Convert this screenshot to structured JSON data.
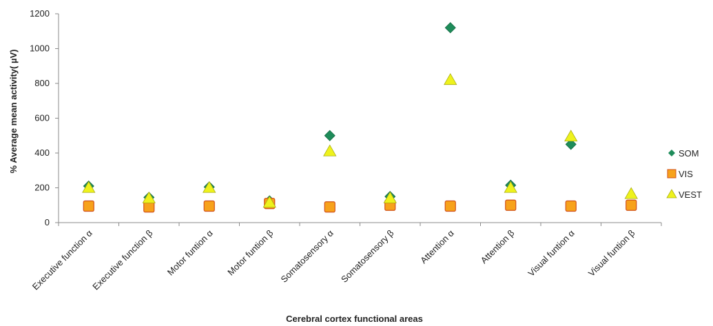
{
  "chart_data": {
    "type": "scatter",
    "title": "",
    "xlabel": "Cerebral cortex functional areas",
    "ylabel": "% Average mean activity( µV)",
    "ylim": [
      0,
      1200
    ],
    "yticks": [
      0,
      200,
      400,
      600,
      800,
      1000,
      1200
    ],
    "grid": false,
    "legend_position": "right",
    "categories": [
      "Executive function α",
      "Executive function β",
      "Motor funtion α",
      "Motor funtion β",
      "Somatosensory α",
      "Somatosensory β",
      "Attention α",
      "Attention β",
      "Visual funtion α",
      "Visual funtion β"
    ],
    "series": [
      {
        "name": "SOM",
        "marker": "diamond",
        "color": "#1e8c5a",
        "values": [
          210,
          145,
          205,
          125,
          500,
          150,
          1120,
          215,
          450,
          null
        ]
      },
      {
        "name": "VIS",
        "marker": "square",
        "color": "#f7a21b",
        "values": [
          95,
          90,
          95,
          110,
          90,
          100,
          95,
          100,
          95,
          100
        ]
      },
      {
        "name": "VEST",
        "marker": "triangle",
        "color": "#eef21c",
        "values": [
          200,
          140,
          200,
          115,
          410,
          140,
          820,
          200,
          495,
          165
        ]
      }
    ]
  }
}
